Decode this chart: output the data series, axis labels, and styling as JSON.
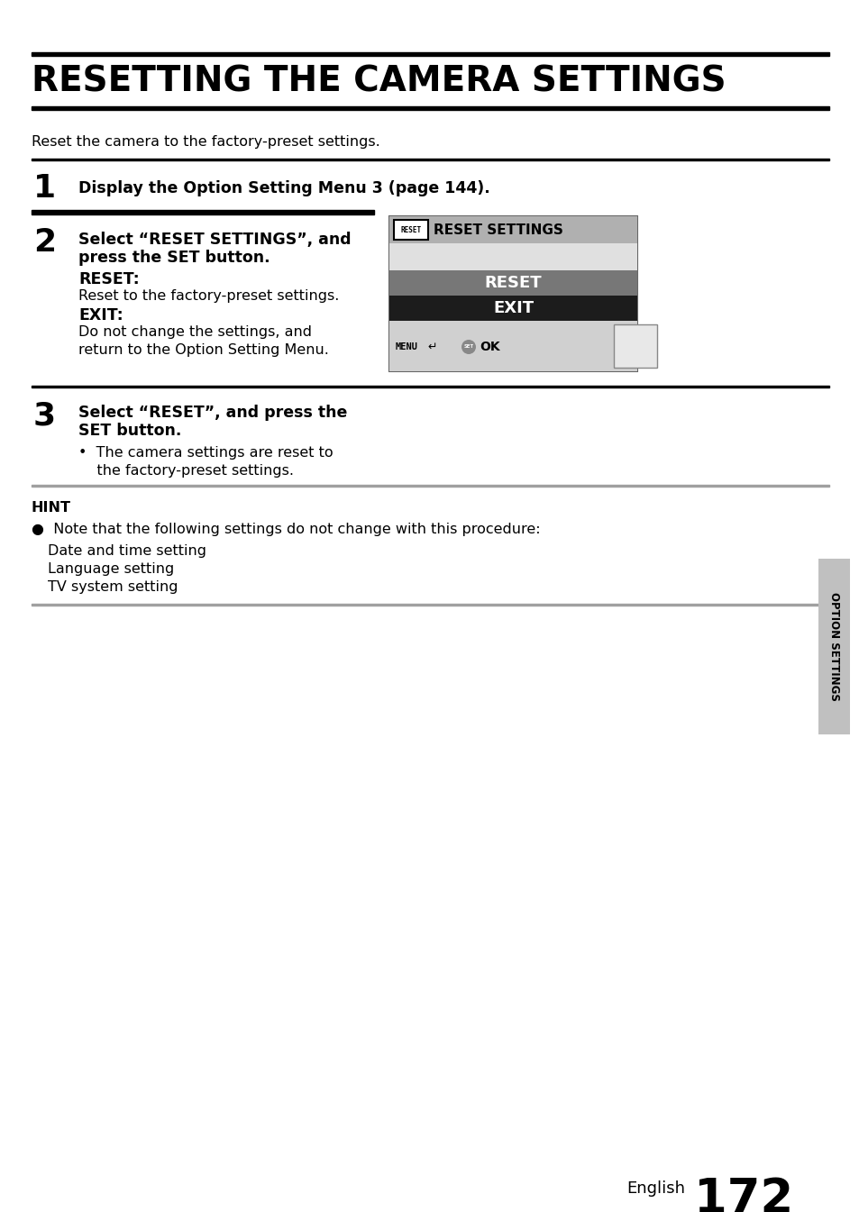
{
  "title": "RESETTING THE CAMERA SETTINGS",
  "subtitle": "Reset the camera to the factory-preset settings.",
  "step1_num": "1",
  "step1_text": "Display the Option Setting Menu 3 (page 144).",
  "step2_num": "2",
  "step2_line1": "Select “RESET SETTINGS”, and",
  "step2_line2": "press the SET button.",
  "step2_bold1": "RESET:",
  "step2_text1": "Reset to the factory-preset settings.",
  "step2_bold2": "EXIT:",
  "step2_text2": "Do not change the settings, and",
  "step2_text3": "return to the Option Setting Menu.",
  "step3_num": "3",
  "step3_line1": "Select “RESET”, and press the",
  "step3_line2": "SET button.",
  "step3_bullet": "•  The camera settings are reset to",
  "step3_bullet2": "    the factory-preset settings.",
  "hint_title": "HINT",
  "hint_bullet": "●  Note that the following settings do not change with this procedure:",
  "hint_line1": "Date and time setting",
  "hint_line2": "Language setting",
  "hint_line3": "TV system setting",
  "side_label": "OPTION SETTINGS",
  "page_label": "English",
  "page_num": "172",
  "bg_color": "#ffffff"
}
